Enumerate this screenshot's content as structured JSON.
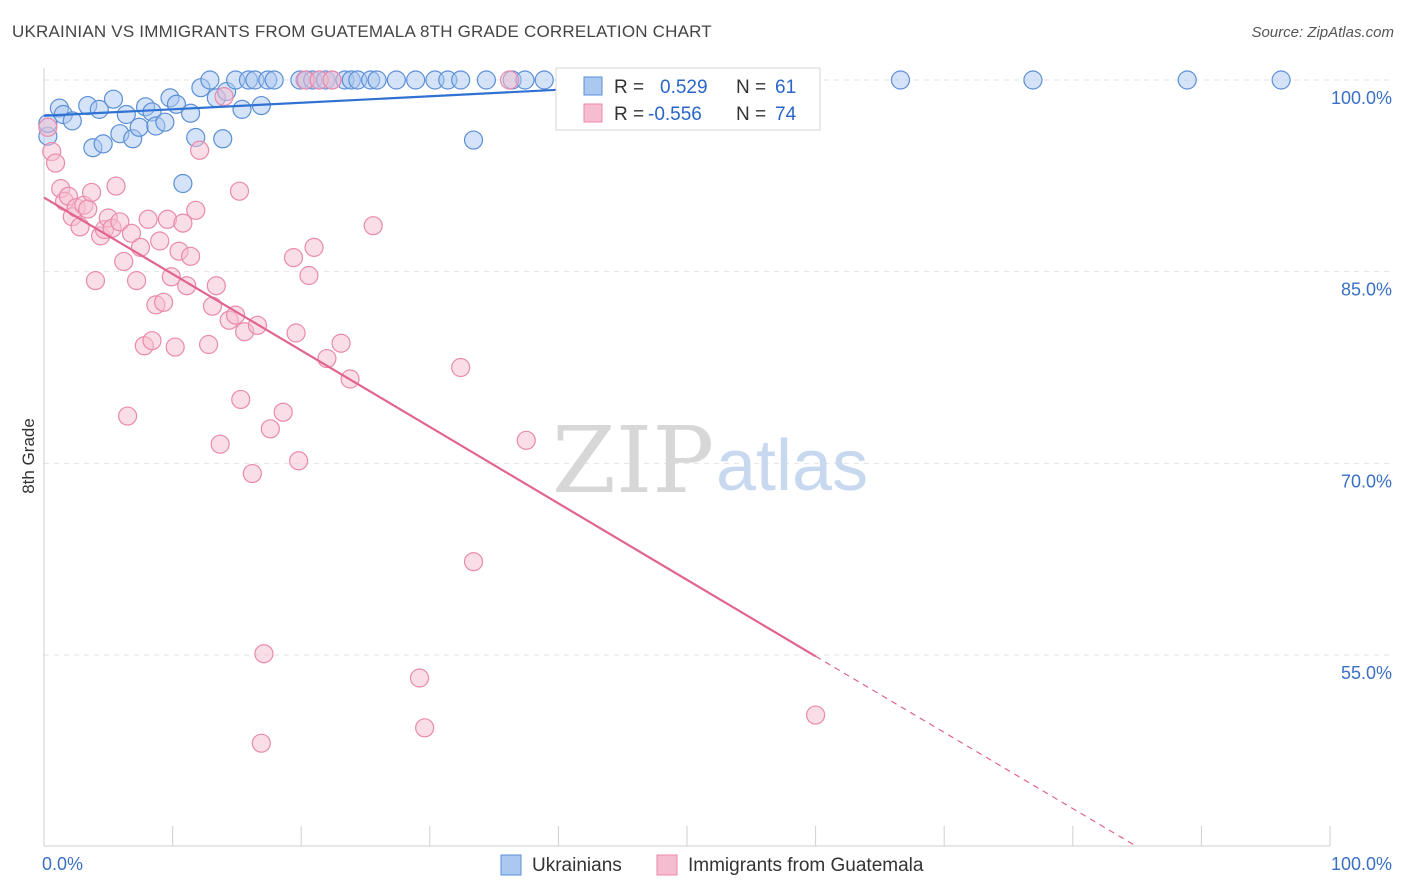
{
  "title": "UKRAINIAN VS IMMIGRANTS FROM GUATEMALA 8TH GRADE CORRELATION CHART",
  "source": "Source: ZipAtlas.com",
  "watermark": {
    "zip": "ZIP",
    "atlas": "atlas"
  },
  "chart_data": {
    "type": "scatter",
    "xlabel": "",
    "ylabel": "8th Grade",
    "xlim": [
      0,
      100
    ],
    "ylim": [
      40.5,
      102
    ],
    "x_tick_labels": [
      {
        "value": 0,
        "label": "0.0%"
      },
      {
        "value": 100,
        "label": "100.0%"
      }
    ],
    "x_minor_ticks": [
      10,
      20,
      30,
      40,
      50,
      60,
      70,
      80,
      90,
      100
    ],
    "y_ticks": [
      {
        "value": 100,
        "label": "100.0%"
      },
      {
        "value": 85,
        "label": "85.0%"
      },
      {
        "value": 70,
        "label": "70.0%"
      },
      {
        "value": 55,
        "label": "55.0%"
      }
    ],
    "grid": true,
    "legend_position": "top-center",
    "legend": [
      {
        "r_label": "R =",
        "r_value": "0.529",
        "n_label": "N =",
        "n_value": "61"
      },
      {
        "r_label": "R =",
        "r_value": "-0.556",
        "n_label": "N =",
        "n_value": "74"
      }
    ],
    "series": [
      {
        "name": "Ukrainians",
        "color": "#5b8fd6",
        "fill": "#aac8f0",
        "trend": {
          "x0": 0,
          "y0": 97.2,
          "x1": 55,
          "y1": 100.0,
          "color": "#2f72d3"
        },
        "points": [
          [
            0.3,
            95.6
          ],
          [
            0.3,
            96.6
          ],
          [
            1.2,
            97.8
          ],
          [
            1.5,
            97.3
          ],
          [
            2.2,
            96.8
          ],
          [
            3.4,
            98.0
          ],
          [
            3.8,
            94.7
          ],
          [
            4.3,
            97.7
          ],
          [
            4.6,
            95.0
          ],
          [
            5.4,
            98.5
          ],
          [
            5.9,
            95.8
          ],
          [
            6.4,
            97.3
          ],
          [
            6.9,
            95.4
          ],
          [
            7.4,
            96.3
          ],
          [
            7.9,
            97.9
          ],
          [
            8.4,
            97.5
          ],
          [
            8.7,
            96.4
          ],
          [
            9.4,
            96.7
          ],
          [
            9.8,
            98.6
          ],
          [
            10.3,
            98.1
          ],
          [
            10.8,
            91.9
          ],
          [
            11.4,
            97.4
          ],
          [
            11.8,
            95.5
          ],
          [
            12.2,
            99.4
          ],
          [
            12.9,
            100.0
          ],
          [
            13.4,
            98.6
          ],
          [
            13.9,
            95.4
          ],
          [
            14.2,
            99.1
          ],
          [
            14.9,
            100.0
          ],
          [
            15.4,
            97.7
          ],
          [
            15.9,
            100.0
          ],
          [
            16.4,
            100.0
          ],
          [
            16.9,
            98.0
          ],
          [
            17.4,
            100.0
          ],
          [
            17.9,
            100.0
          ],
          [
            19.9,
            100.0
          ],
          [
            20.4,
            100.0
          ],
          [
            20.9,
            100.0
          ],
          [
            21.4,
            100.0
          ],
          [
            21.9,
            100.0
          ],
          [
            22.4,
            100.0
          ],
          [
            23.4,
            100.0
          ],
          [
            23.9,
            100.0
          ],
          [
            24.4,
            100.0
          ],
          [
            25.4,
            100.0
          ],
          [
            25.9,
            100.0
          ],
          [
            27.4,
            100.0
          ],
          [
            28.9,
            100.0
          ],
          [
            30.4,
            100.0
          ],
          [
            31.4,
            100.0
          ],
          [
            32.4,
            100.0
          ],
          [
            33.4,
            95.3
          ],
          [
            34.4,
            100.0
          ],
          [
            36.4,
            100.0
          ],
          [
            37.4,
            100.0
          ],
          [
            38.9,
            100.0
          ],
          [
            47.9,
            100.0
          ],
          [
            66.6,
            100.0
          ],
          [
            76.9,
            100.0
          ],
          [
            88.9,
            100.0
          ],
          [
            96.2,
            100.0
          ]
        ]
      },
      {
        "name": "Immigrants from Guatemala",
        "color": "#e98aaa",
        "fill": "#f6bdd0",
        "trend": {
          "x0": 0,
          "y0": 90.8,
          "x1": 60,
          "y1": 54.9,
          "x_dash_end": 85,
          "y_dash_end": 40,
          "color": "#e0648e"
        },
        "points": [
          [
            0.3,
            96.3
          ],
          [
            0.6,
            94.4
          ],
          [
            0.9,
            93.5
          ],
          [
            1.3,
            91.5
          ],
          [
            1.6,
            90.5
          ],
          [
            1.9,
            90.9
          ],
          [
            2.2,
            89.3
          ],
          [
            2.5,
            90.0
          ],
          [
            2.8,
            88.5
          ],
          [
            3.1,
            90.2
          ],
          [
            3.4,
            89.9
          ],
          [
            3.7,
            91.2
          ],
          [
            4.0,
            84.3
          ],
          [
            4.4,
            87.8
          ],
          [
            4.7,
            88.3
          ],
          [
            5.0,
            89.2
          ],
          [
            5.3,
            88.4
          ],
          [
            5.6,
            91.7
          ],
          [
            5.9,
            88.9
          ],
          [
            6.2,
            85.8
          ],
          [
            6.5,
            73.7
          ],
          [
            6.8,
            88.0
          ],
          [
            7.2,
            84.3
          ],
          [
            7.5,
            86.9
          ],
          [
            7.8,
            79.2
          ],
          [
            8.1,
            89.1
          ],
          [
            8.4,
            79.6
          ],
          [
            8.7,
            82.4
          ],
          [
            9.0,
            87.4
          ],
          [
            9.3,
            82.6
          ],
          [
            9.6,
            89.1
          ],
          [
            9.9,
            84.6
          ],
          [
            10.2,
            79.1
          ],
          [
            10.5,
            86.6
          ],
          [
            10.8,
            88.8
          ],
          [
            11.1,
            83.9
          ],
          [
            11.4,
            86.2
          ],
          [
            11.8,
            89.8
          ],
          [
            12.1,
            94.5
          ],
          [
            12.8,
            79.3
          ],
          [
            13.1,
            82.3
          ],
          [
            13.4,
            83.9
          ],
          [
            13.7,
            71.5
          ],
          [
            14.0,
            98.7
          ],
          [
            14.4,
            81.2
          ],
          [
            14.9,
            81.6
          ],
          [
            15.2,
            91.3
          ],
          [
            15.3,
            75.0
          ],
          [
            15.6,
            80.3
          ],
          [
            16.2,
            69.2
          ],
          [
            16.6,
            80.8
          ],
          [
            16.9,
            48.1
          ],
          [
            17.1,
            55.1
          ],
          [
            17.6,
            72.7
          ],
          [
            18.6,
            74.0
          ],
          [
            19.4,
            86.1
          ],
          [
            19.6,
            80.2
          ],
          [
            19.8,
            70.2
          ],
          [
            20.3,
            100.0
          ],
          [
            20.6,
            84.7
          ],
          [
            21.0,
            86.9
          ],
          [
            21.4,
            100.0
          ],
          [
            22.0,
            78.2
          ],
          [
            22.4,
            100.0
          ],
          [
            23.1,
            79.4
          ],
          [
            23.8,
            76.6
          ],
          [
            25.6,
            88.6
          ],
          [
            29.2,
            53.2
          ],
          [
            29.6,
            49.3
          ],
          [
            32.4,
            77.5
          ],
          [
            33.4,
            62.3
          ],
          [
            36.2,
            100.0
          ],
          [
            37.5,
            71.8
          ],
          [
            60.0,
            50.3
          ]
        ]
      }
    ]
  }
}
